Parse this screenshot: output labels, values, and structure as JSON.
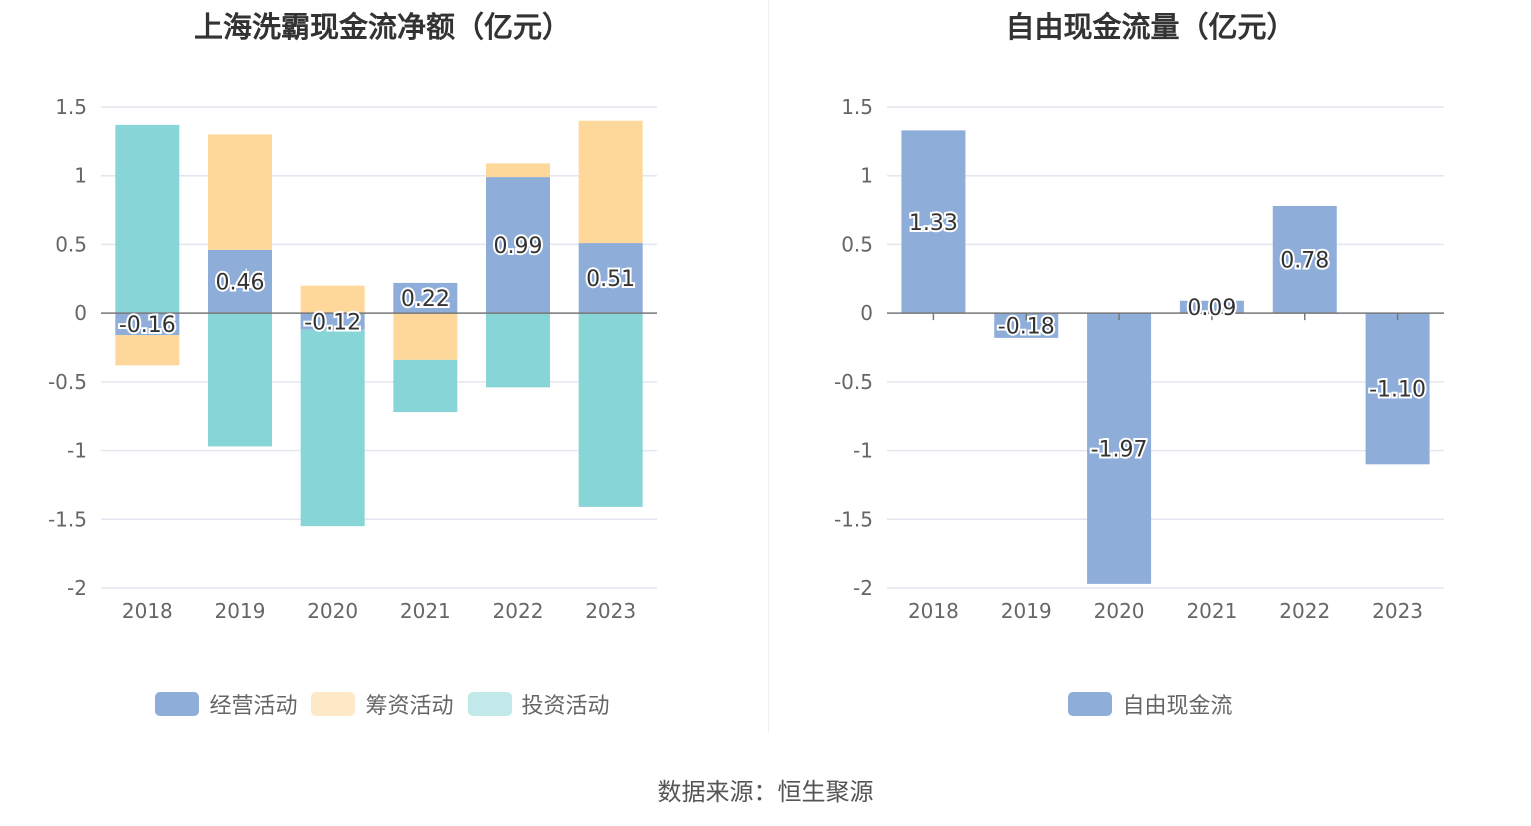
{
  "charts": {
    "left": {
      "title": "上海洗霸现金流净额（亿元）"
    },
    "right": {
      "title": "自由现金流量（亿元）"
    }
  },
  "source": "数据来源：恒生聚源",
  "chart_data": [
    {
      "type": "bar",
      "stacked": true,
      "title": "上海洗霸现金流净额（亿元）",
      "categories": [
        "2018",
        "2019",
        "2020",
        "2021",
        "2022",
        "2023"
      ],
      "ylim": [
        -2,
        1.5
      ],
      "yticks": [
        1.5,
        1,
        0.5,
        0,
        -0.5,
        -1,
        -1.5,
        -2
      ],
      "ytick_labels": [
        "1.5",
        "1",
        "0.5",
        "0",
        "-0.5",
        "-1",
        "-1.5",
        "-2"
      ],
      "grid": true,
      "legend_position": "bottom",
      "series": [
        {
          "name": "经营活动",
          "color": "#8eadd9",
          "values": [
            -0.16,
            0.46,
            -0.12,
            0.22,
            0.99,
            0.51
          ],
          "labels": [
            "-0.16",
            "0.46",
            "-0.12",
            "0.22",
            "0.99",
            "0.51"
          ]
        },
        {
          "name": "筹资活动",
          "color": "#fdd89a",
          "legend_color": "#fde9c6",
          "values": [
            -0.22,
            0.84,
            0.2,
            -0.34,
            0.1,
            0.89
          ]
        },
        {
          "name": "投资活动",
          "color": "#88d5d8",
          "legend_color": "#c1e9ea",
          "values": [
            1.37,
            -0.97,
            -1.43,
            -0.38,
            -0.54,
            -1.41
          ]
        }
      ]
    },
    {
      "type": "bar",
      "title": "自由现金流量（亿元）",
      "categories": [
        "2018",
        "2019",
        "2020",
        "2021",
        "2022",
        "2023"
      ],
      "ylim": [
        -2,
        1.5
      ],
      "yticks": [
        1.5,
        1,
        0.5,
        0,
        -0.5,
        -1,
        -1.5,
        -2
      ],
      "ytick_labels": [
        "1.5",
        "1",
        "0.5",
        "0",
        "-0.5",
        "-1",
        "-1.5",
        "-2"
      ],
      "grid": true,
      "legend_position": "bottom",
      "series": [
        {
          "name": "自由现金流",
          "color": "#8eadd9",
          "values": [
            1.33,
            -0.18,
            -1.97,
            0.09,
            0.78,
            -1.1
          ],
          "labels": [
            "1.33",
            "-0.18",
            "-1.97",
            "0.09",
            "0.78",
            "-1.10"
          ]
        }
      ]
    }
  ]
}
